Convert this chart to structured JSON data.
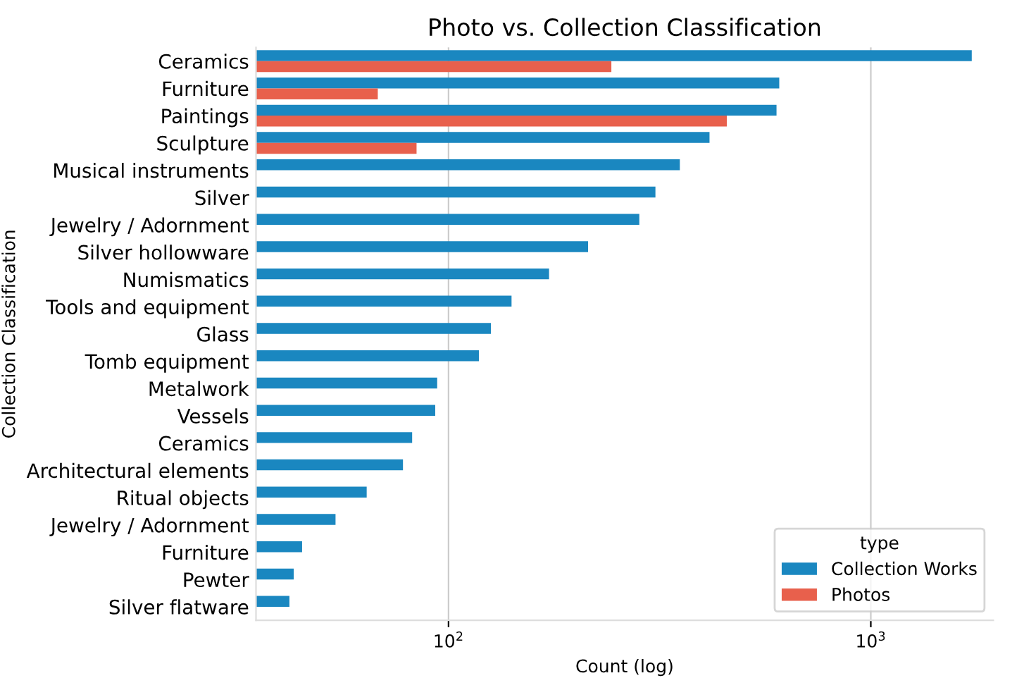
{
  "chart_data": {
    "type": "bar",
    "orientation": "horizontal",
    "title": "Photo vs. Collection Classification",
    "xlabel": "Count (log)",
    "ylabel": "Collection Classification",
    "legend_title": "type",
    "categories": [
      "Ceramics",
      "Furniture",
      "Paintings",
      "Sculpture",
      "Musical instruments",
      "Silver",
      "Jewelry / Adornment",
      "Silver hollowware",
      "Numismatics",
      "Tools and equipment",
      "Glass",
      "Tomb equipment",
      "Metalwork",
      "Vessels",
      "Ceramics",
      "Architectural elements",
      "Ritual objects",
      "Jewelry / Adornment",
      "Furniture",
      "Pewter",
      "Silver flatware"
    ],
    "series": [
      {
        "name": "Collection Works",
        "color": "#1a87c0",
        "values": [
          1734,
          607,
          598,
          415,
          353,
          309,
          283,
          214,
          173,
          141,
          126,
          118,
          94,
          93,
          82,
          78,
          64,
          54,
          45,
          43,
          42
        ]
      },
      {
        "name": "Photos",
        "color": "#e8604c",
        "values": [
          243,
          68,
          456,
          84,
          null,
          null,
          null,
          null,
          null,
          null,
          null,
          null,
          null,
          null,
          null,
          null,
          null,
          null,
          null,
          null,
          null
        ]
      }
    ],
    "log": "x",
    "xlim": [
      35,
      1950
    ],
    "xticks": [
      {
        "value": 100,
        "label": "10$^{2}$"
      },
      {
        "value": 1000,
        "label": "10$^{3}$"
      }
    ],
    "grid": "x",
    "legend": "bottom right"
  }
}
